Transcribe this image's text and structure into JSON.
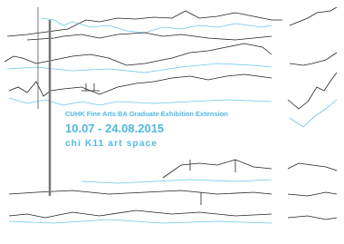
{
  "poster": {
    "title": "CUHK Fine Arts BA Graduate Exhibition Extension",
    "dates": "10.07 - 24.08.2015",
    "venue": "chi K11 art space"
  }
}
